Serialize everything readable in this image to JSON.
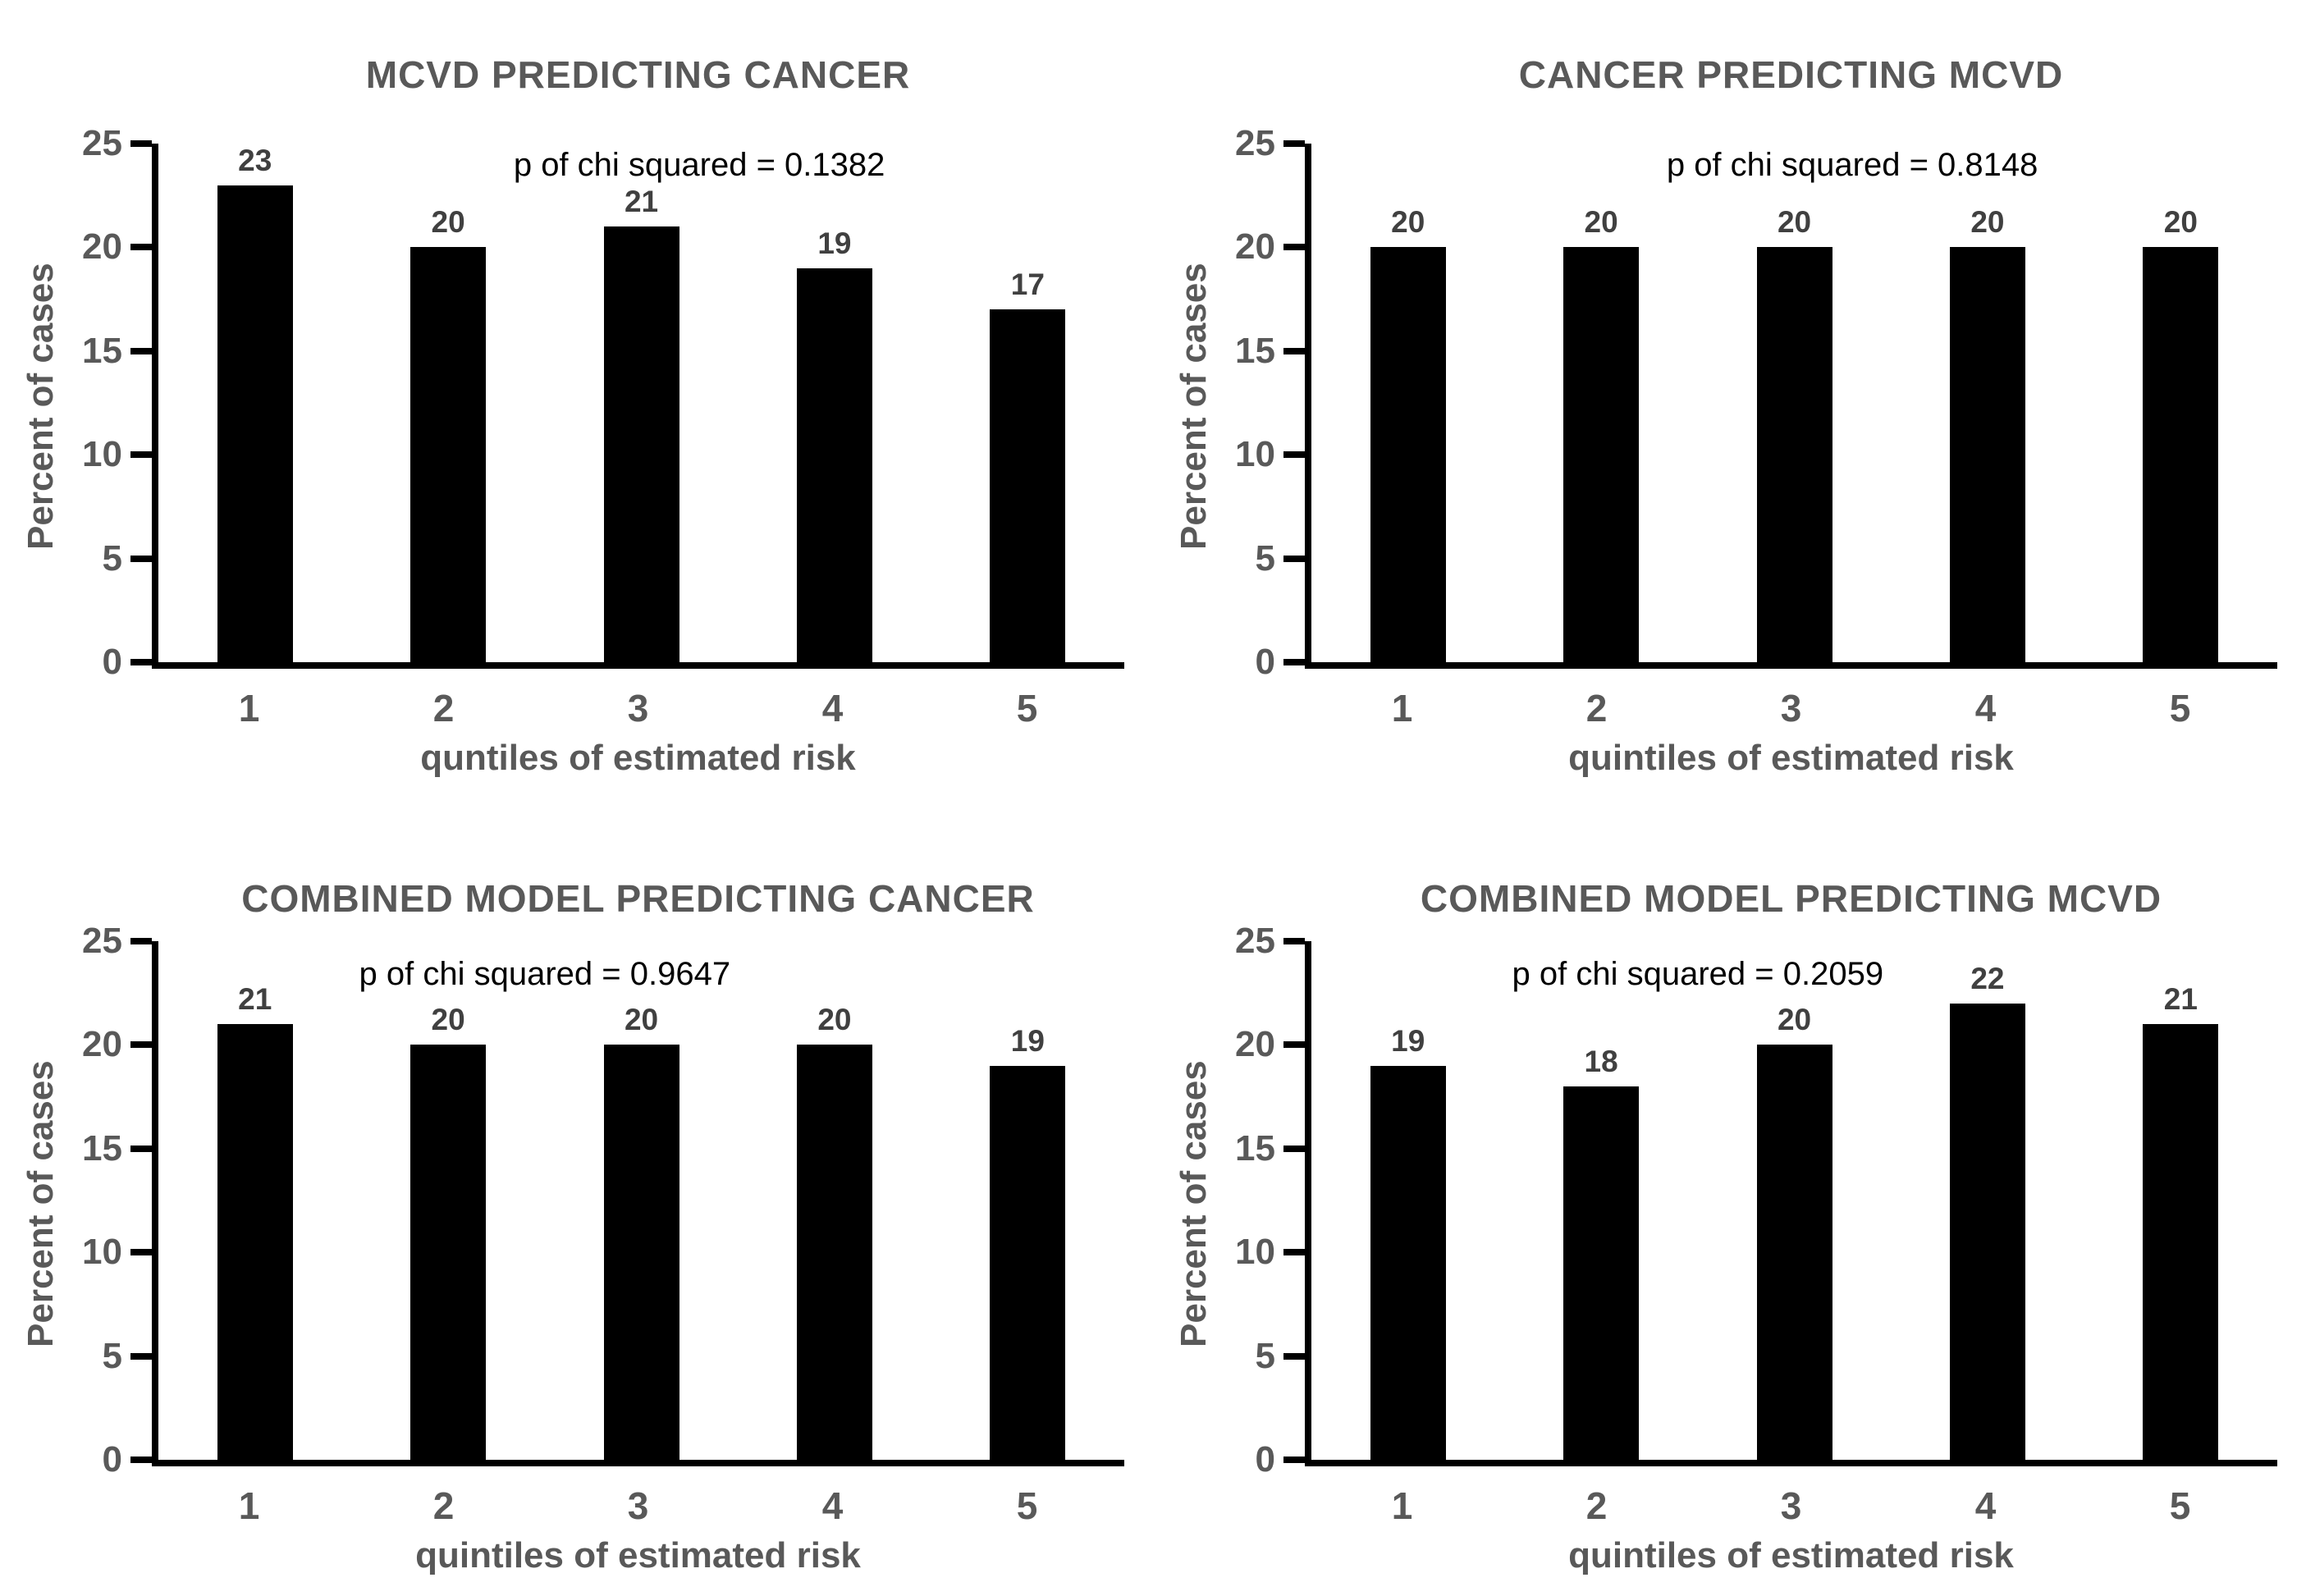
{
  "style": {
    "title_color": "#595959",
    "tick_label_color": "#595959",
    "value_label_color": "#404040",
    "annotation_color": "#000000",
    "bar_color": "#000000",
    "axis_color": "#000000",
    "background": "#ffffff"
  },
  "chart_data": [
    {
      "type": "bar",
      "title": "MCVD PREDICTING CANCER",
      "annotation": "p of chi squared = 0.1382",
      "categories": [
        "1",
        "2",
        "3",
        "4",
        "5"
      ],
      "values": [
        23,
        20,
        21,
        19,
        17
      ],
      "xlabel": "quntiles of estimated risk",
      "ylabel": "Percent of cases",
      "ylim": [
        0,
        25
      ],
      "yticks": [
        0,
        5,
        10,
        15,
        20,
        25
      ],
      "grid": false,
      "legend": "none"
    },
    {
      "type": "bar",
      "title": "CANCER PREDICTING MCVD",
      "annotation": "p of chi squared = 0.8148",
      "categories": [
        "1",
        "2",
        "3",
        "4",
        "5"
      ],
      "values": [
        20,
        20,
        20,
        20,
        20
      ],
      "xlabel": "quintiles of estimated risk",
      "ylabel": "Percent of cases",
      "ylim": [
        0,
        25
      ],
      "yticks": [
        0,
        5,
        10,
        15,
        20,
        25
      ],
      "grid": false,
      "legend": "none"
    },
    {
      "type": "bar",
      "title": "COMBINED MODEL PREDICTING CANCER",
      "annotation": "p of chi squared = 0.9647",
      "categories": [
        "1",
        "2",
        "3",
        "4",
        "5"
      ],
      "values": [
        21,
        20,
        20,
        20,
        19
      ],
      "xlabel": "quintiles of estimated risk",
      "ylabel": "Percent of cases",
      "ylim": [
        0,
        25
      ],
      "yticks": [
        0,
        5,
        10,
        15,
        20,
        25
      ],
      "grid": false,
      "legend": "none"
    },
    {
      "type": "bar",
      "title": "COMBINED MODEL PREDICTING MCVD",
      "annotation": "p of chi squared = 0.2059",
      "categories": [
        "1",
        "2",
        "3",
        "4",
        "5"
      ],
      "values": [
        19,
        18,
        20,
        22,
        21
      ],
      "xlabel": "quintiles of estimated risk",
      "ylabel": "Percent of cases",
      "ylim": [
        0,
        25
      ],
      "yticks": [
        0,
        5,
        10,
        15,
        20,
        25
      ],
      "grid": false,
      "legend": "none"
    }
  ]
}
